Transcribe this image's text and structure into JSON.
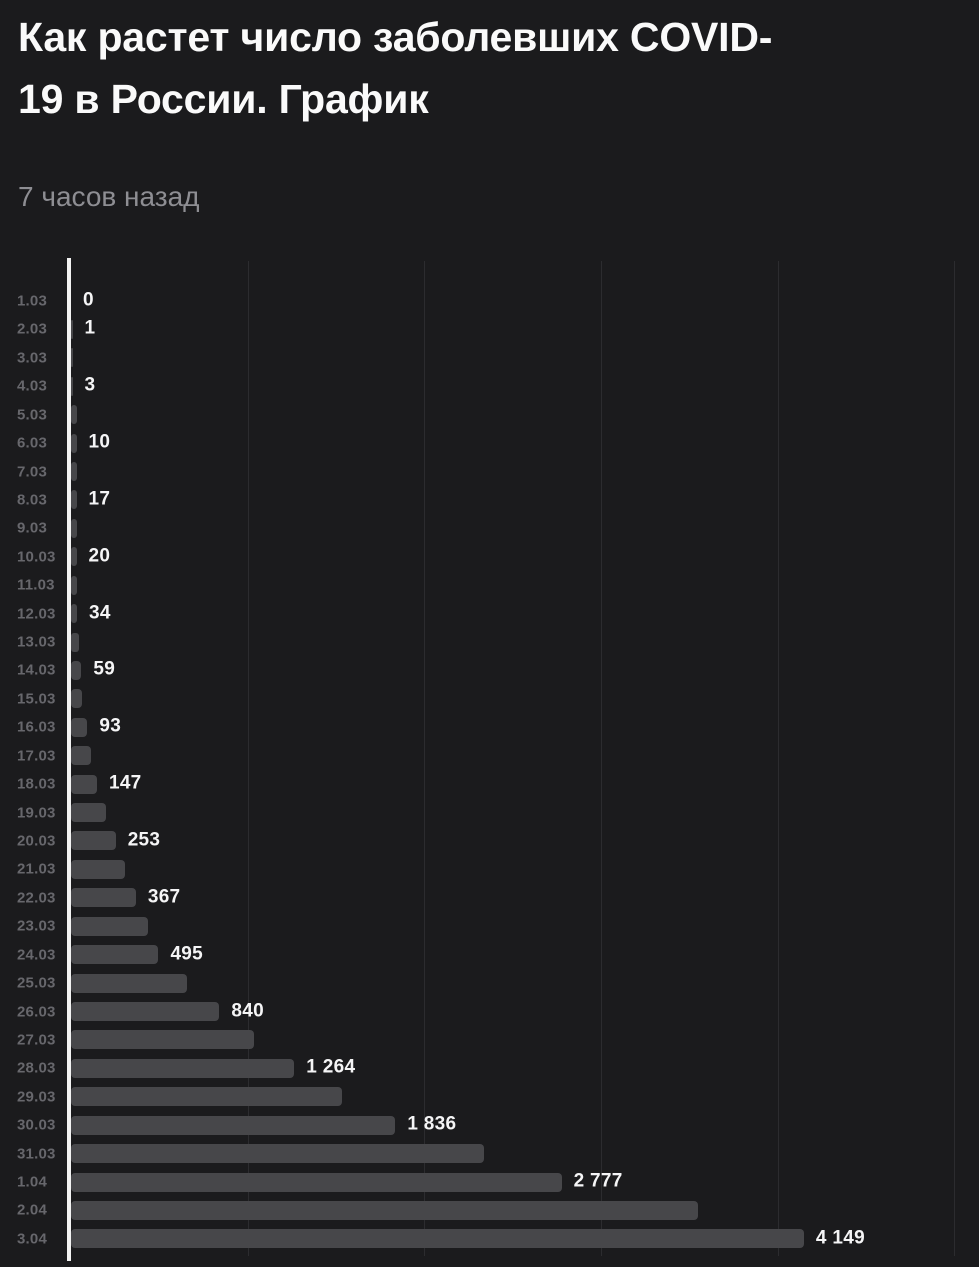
{
  "page": {
    "background": "#1b1b1d"
  },
  "header": {
    "title": "Как растет число заболевших COVID-19 в России. График",
    "timestamp": "7 часов назад"
  },
  "chart_data": {
    "type": "bar",
    "orientation": "horizontal",
    "categories": [
      "1.03",
      "2.03",
      "3.03",
      "4.03",
      "5.03",
      "6.03",
      "7.03",
      "8.03",
      "9.03",
      "10.03",
      "11.03",
      "12.03",
      "13.03",
      "14.03",
      "15.03",
      "16.03",
      "17.03",
      "18.03",
      "19.03",
      "20.03",
      "21.03",
      "22.03",
      "23.03",
      "24.03",
      "25.03",
      "26.03",
      "27.03",
      "28.03",
      "29.03",
      "30.03",
      "31.03",
      "1.04",
      "2.04",
      "3.04"
    ],
    "values": [
      0,
      1,
      1,
      3,
      4,
      10,
      13,
      17,
      17,
      20,
      28,
      34,
      45,
      59,
      63,
      93,
      114,
      147,
      199,
      253,
      306,
      367,
      438,
      495,
      658,
      840,
      1036,
      1264,
      1534,
      1836,
      2337,
      2777,
      3548,
      4149
    ],
    "value_labels": [
      "0",
      "1",
      null,
      "3",
      null,
      "10",
      null,
      "17",
      null,
      "20",
      null,
      "34",
      null,
      "59",
      null,
      "93",
      null,
      "147",
      null,
      "253",
      null,
      "367",
      null,
      "495",
      null,
      "840",
      null,
      "1 264",
      null,
      "1 836",
      null,
      "2 777",
      null,
      "4 149"
    ],
    "xlim": [
      0,
      5140
    ],
    "gridlines": [
      1000,
      2000,
      3000,
      4000,
      5000
    ],
    "grid": true,
    "legend": false,
    "colors": {
      "bar": "#47474a",
      "axis": "#f2f2f2",
      "gridline": "#2c2c2f",
      "date_label": "#67676c",
      "value_label": "#f5f5f6"
    }
  }
}
